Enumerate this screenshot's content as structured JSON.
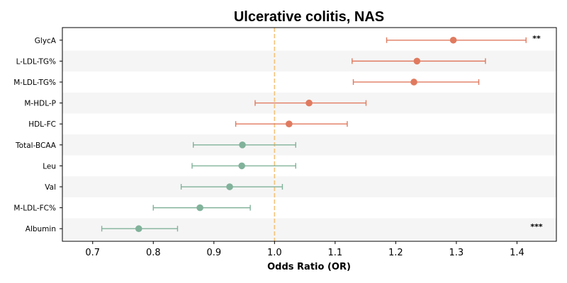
{
  "chart_data": {
    "type": "forest",
    "title": "Ulcerative colitis, NAS",
    "xlabel": "Odds Ratio (OR)",
    "xlim": [
      0.65,
      1.465
    ],
    "xticks": [
      "0.7",
      "0.8",
      "0.9",
      "1.0",
      "1.1",
      "1.2",
      "1.3",
      "1.4"
    ],
    "reference_line": 1.0,
    "colors": {
      "positive": "#e07a5f",
      "negative": "#81b29a",
      "reference": "#f4c27a",
      "band": "#f5f5f5"
    },
    "rows": [
      {
        "label": "GlycA",
        "or": 1.295,
        "low": 1.185,
        "high": 1.415,
        "direction": "positive",
        "sig": "**"
      },
      {
        "label": "L-LDL-TG%",
        "or": 1.235,
        "low": 1.128,
        "high": 1.348,
        "direction": "positive",
        "sig": ""
      },
      {
        "label": "M-LDL-TG%",
        "or": 1.23,
        "low": 1.13,
        "high": 1.337,
        "direction": "positive",
        "sig": ""
      },
      {
        "label": "M-HDL-P",
        "or": 1.057,
        "low": 0.968,
        "high": 1.151,
        "direction": "positive",
        "sig": ""
      },
      {
        "label": "HDL-FC",
        "or": 1.024,
        "low": 0.936,
        "high": 1.12,
        "direction": "positive",
        "sig": ""
      },
      {
        "label": "Total-BCAA",
        "or": 0.947,
        "low": 0.866,
        "high": 1.035,
        "direction": "negative",
        "sig": ""
      },
      {
        "label": "Leu",
        "or": 0.946,
        "low": 0.864,
        "high": 1.035,
        "direction": "negative",
        "sig": ""
      },
      {
        "label": "Val",
        "or": 0.926,
        "low": 0.846,
        "high": 1.013,
        "direction": "negative",
        "sig": ""
      },
      {
        "label": "M-LDL-FC%",
        "or": 0.877,
        "low": 0.8,
        "high": 0.96,
        "direction": "negative",
        "sig": ""
      },
      {
        "label": "Albumin",
        "or": 0.776,
        "low": 0.715,
        "high": 0.84,
        "direction": "negative",
        "sig": "***"
      }
    ]
  }
}
